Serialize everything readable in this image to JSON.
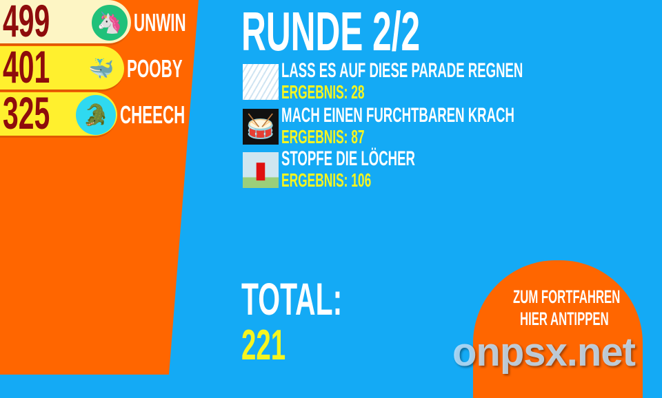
{
  "scoreboard": [
    {
      "score": "499",
      "name": "UNWIN",
      "avatar": "unicorn-avatar",
      "row_color": "#fdf5c4",
      "avatar_bg": "#20c17a"
    },
    {
      "score": "401",
      "name": "POOBY",
      "avatar": "blue-creature-avatar",
      "row_color": "#fff02e",
      "avatar_bg": "#fff02e"
    },
    {
      "score": "325",
      "name": "CHEECH",
      "avatar": "crocodile-avatar",
      "row_color": "#fff02e",
      "avatar_bg": "#2fd9f0"
    }
  ],
  "round": {
    "title": "RUNDE 2/2"
  },
  "games": [
    {
      "name": "LASS ES AUF DIESE PARADE REGNEN",
      "result": "ERGEBNIS: 28",
      "icon": "rain-parade-thumbnail"
    },
    {
      "name": "MACH EINEN FURCHTBAREN KRACH",
      "result": "ERGEBNIS: 87",
      "icon": "drum-thumbnail"
    },
    {
      "name": "STOPFE DIE LÖCHER",
      "result": "ERGEBNIS: 106",
      "icon": "hydrant-thumbnail"
    }
  ],
  "total": {
    "label": "TOTAL:",
    "value": "221"
  },
  "continue_button": {
    "line1": "ZUM FORTFAHREN",
    "line2": "HIER ANTIPPEN"
  },
  "watermark": "onpsx.net",
  "colors": {
    "orange": "#ff6600",
    "blue": "#14aaf5",
    "yellow": "#f6f520",
    "score": "#8e0c0c"
  }
}
